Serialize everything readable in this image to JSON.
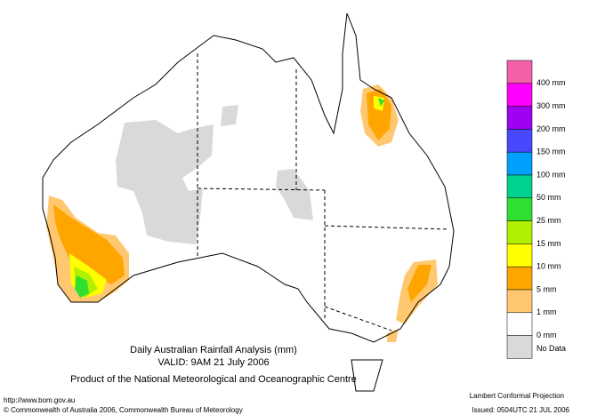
{
  "map": {
    "title": "Daily Australian Rainfall Analysis (mm)",
    "valid": "VALID: 9AM 21 July 2006",
    "product": "Product of the National Meteorological and Oceanographic Centre",
    "legend": {
      "colors": [
        "#f460a8",
        "#ff00ff",
        "#a000f0",
        "#4848ff",
        "#00a0ff",
        "#00d090",
        "#30e030",
        "#b0f000",
        "#ffff00",
        "#ffa500",
        "#ffc870",
        "#ffffff",
        "#d9d9d9"
      ],
      "labels": [
        "400 mm",
        "300 mm",
        "200 mm",
        "150 mm",
        "100 mm",
        "50 mm",
        "25 mm",
        "15 mm",
        "10 mm",
        "5 mm",
        "1 mm",
        "0 mm",
        "No Data"
      ]
    },
    "footer": {
      "url": "http://www.bom.gov.au",
      "copyright": "© Commonwealth of Australia 2006, Commonwealth Bureau of Meteorology",
      "projection": "Lambert Conformal Projection",
      "issued": "Issued: 0504UTC 21 JUL 2006"
    }
  }
}
